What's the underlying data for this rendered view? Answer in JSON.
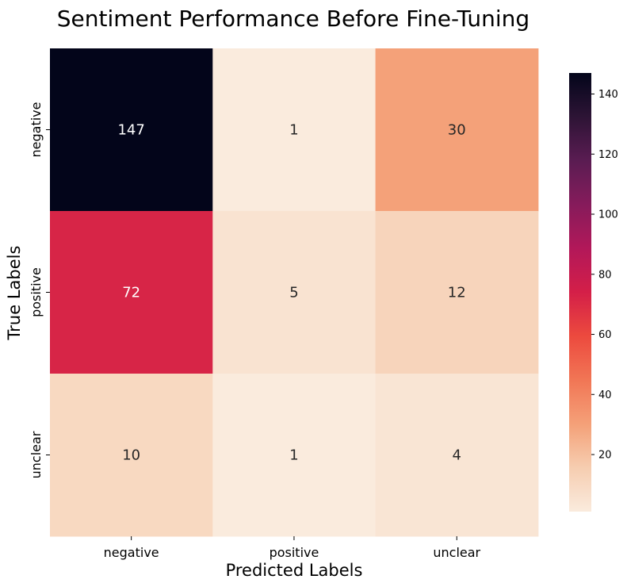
{
  "chart_data": {
    "type": "heatmap",
    "title": "Sentiment Performance Before Fine-Tuning",
    "xlabel": "Predicted Labels",
    "ylabel": "True Labels",
    "x_categories": [
      "negative",
      "positive",
      "unclear"
    ],
    "y_categories": [
      "negative",
      "positive",
      "unclear"
    ],
    "values": [
      [
        147,
        1,
        30
      ],
      [
        72,
        5,
        12
      ],
      [
        10,
        1,
        4
      ]
    ],
    "colorbar": {
      "min": 1,
      "max": 147,
      "ticks": [
        20,
        40,
        60,
        80,
        100,
        120,
        140
      ],
      "colormap": "rocket_r"
    }
  }
}
